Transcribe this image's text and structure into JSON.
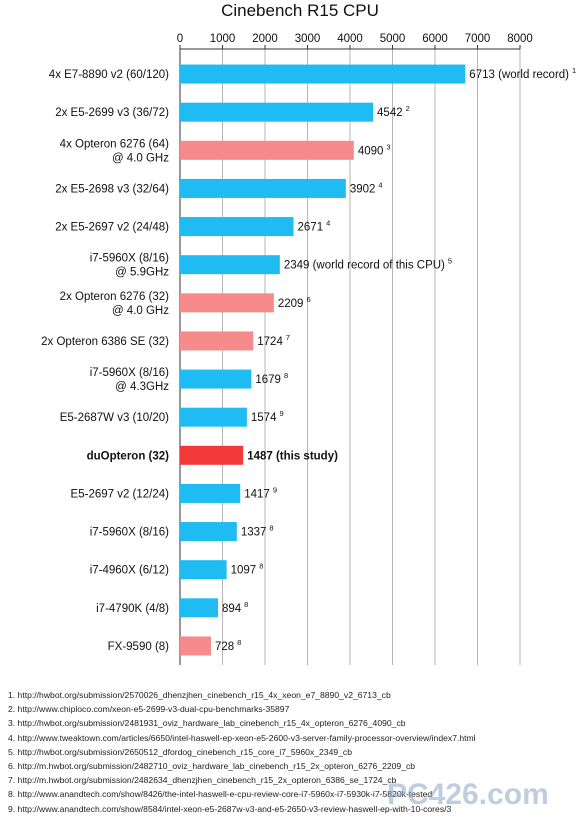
{
  "chart_data": {
    "type": "bar",
    "orientation": "horizontal",
    "title": "Cinebench R15 CPU",
    "xlim": [
      0,
      8000
    ],
    "x_ticks": [
      "0",
      "1000",
      "2000",
      "3000",
      "4000",
      "5000",
      "6000",
      "7000",
      "8000"
    ],
    "grid": true,
    "bars": [
      {
        "label": [
          "4x E7-8890 v2 (60/120)"
        ],
        "value": 6713,
        "value_text": "6713 (world record)",
        "ref": "1",
        "color": "#1ebcf2"
      },
      {
        "label": [
          "2x E5-2699 v3 (36/72)"
        ],
        "value": 4542,
        "value_text": "4542",
        "ref": "2",
        "color": "#1ebcf2"
      },
      {
        "label": [
          "4x Opteron 6276 (64)",
          "@ 4.0 GHz"
        ],
        "value": 4090,
        "value_text": "4090",
        "ref": "3",
        "color": "#f78b8b"
      },
      {
        "label": [
          "2x E5-2698 v3 (32/64)"
        ],
        "value": 3902,
        "value_text": "3902",
        "ref": "4",
        "color": "#1ebcf2"
      },
      {
        "label": [
          "2x E5-2697 v2 (24/48)"
        ],
        "value": 2671,
        "value_text": "2671",
        "ref": "4",
        "color": "#1ebcf2"
      },
      {
        "label": [
          "i7-5960X (8/16)",
          "@ 5.9GHz"
        ],
        "value": 2349,
        "value_text": "2349 (world record of this CPU)",
        "ref": "5",
        "color": "#1ebcf2"
      },
      {
        "label": [
          "2x Opteron 6276 (32)",
          "@ 4.0 GHz"
        ],
        "value": 2209,
        "value_text": "2209",
        "ref": "6",
        "color": "#f78b8b"
      },
      {
        "label": [
          "2x Opteron 6386 SE (32)"
        ],
        "value": 1724,
        "value_text": "1724",
        "ref": "7",
        "color": "#f78b8b"
      },
      {
        "label": [
          "i7-5960X (8/16)",
          "@ 4.3GHz"
        ],
        "value": 1679,
        "value_text": "1679",
        "ref": "8",
        "color": "#1ebcf2"
      },
      {
        "label": [
          "E5-2687W v3 (10/20)"
        ],
        "value": 1574,
        "value_text": "1574",
        "ref": "9",
        "color": "#1ebcf2"
      },
      {
        "label": [
          "duOpteron (32)"
        ],
        "value": 1487,
        "value_text": "1487 (this study)",
        "ref": "",
        "color": "#f23a3a",
        "bold": true
      },
      {
        "label": [
          "E5-2697 v2 (12/24)"
        ],
        "value": 1417,
        "value_text": "1417",
        "ref": "9",
        "color": "#1ebcf2"
      },
      {
        "label": [
          "i7-5960X (8/16)"
        ],
        "value": 1337,
        "value_text": "1337",
        "ref": "8",
        "color": "#1ebcf2"
      },
      {
        "label": [
          "i7-4960X (6/12)"
        ],
        "value": 1097,
        "value_text": "1097",
        "ref": "8",
        "color": "#1ebcf2"
      },
      {
        "label": [
          "i7-4790K (4/8)"
        ],
        "value": 894,
        "value_text": "894",
        "ref": "8",
        "color": "#1ebcf2"
      },
      {
        "label": [
          "FX-9590 (8)"
        ],
        "value": 728,
        "value_text": "728",
        "ref": "8",
        "color": "#f78b8b"
      }
    ]
  },
  "references": [
    "1. http://hwbot.org/submission/2570026_dhenzjhen_cinebench_r15_4x_xeon_e7_8890_v2_6713_cb",
    "2. http://www.chiploco.com/xeon-e5-2699-v3-dual-cpu-benchmarks-35897",
    "3. http://hwbot.org/submission/2481931_oviz_hardware_lab_cinebench_r15_4x_opteron_6276_4090_cb",
    "4. http://www.tweaktown.com/articles/6650/intel-haswell-ep-xeon-e5-2600-v3-server-family-processor-overview/index7.html",
    "5. http://hwbot.org/submission/2650512_dfordog_cinebench_r15_core_i7_5960x_2349_cb",
    "6. http://m.hwbot.org/submission/2482710_oviz_hardware_lab_cinebench_r15_2x_opteron_6276_2209_cb",
    "7. http://m.hwbot.org/submission/2482634_dhenzjhen_cinebench_r15_2x_opteron_6386_se_1724_cb",
    "8. http://www.anandtech.com/show/8426/the-intel-haswell-e-cpu-review-core-i7-5960x-i7-5930k-i7-5820k-tested",
    "9. http://www.anandtech.com/show/8584/intel-xeon-e5-2687w-v3-and-e5-2650-v3-review-haswell-ep-with-10-cores/3"
  ],
  "watermark": {
    "text": "PC426.com",
    "color": "#8aa6c7"
  }
}
